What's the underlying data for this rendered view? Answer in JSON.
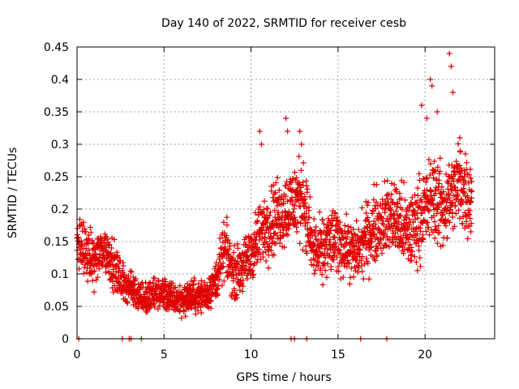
{
  "chart_data": {
    "type": "scatter",
    "title": "Day 140 of 2022, SRMTID for receiver cesb",
    "xlabel": "GPS time / hours",
    "ylabel": "SRMTID / TECUs",
    "xlim": [
      0,
      24
    ],
    "ylim": [
      0,
      0.45
    ],
    "xticks": [
      0,
      5,
      10,
      15,
      20
    ],
    "xtick_labels": [
      "0",
      "5",
      "10",
      "15",
      "20"
    ],
    "yticks": [
      0,
      0.05,
      0.1,
      0.15,
      0.2,
      0.25,
      0.3,
      0.35,
      0.4,
      0.45
    ],
    "ytick_labels": [
      "0",
      "0.05",
      "0.1",
      "0.15",
      "0.2",
      "0.25",
      "0.3",
      "0.35",
      "0.4",
      "0.45"
    ],
    "grid": true,
    "marker": "+",
    "color": "#e00000",
    "series": [
      {
        "name": "SRMTID",
        "trend": {
          "x": [
            0.0,
            0.5,
            1.0,
            1.5,
            2.0,
            2.5,
            3.0,
            3.5,
            4.0,
            4.5,
            5.0,
            5.5,
            6.0,
            6.5,
            7.0,
            7.5,
            8.0,
            8.5,
            9.0,
            9.5,
            10.0,
            10.5,
            11.0,
            11.5,
            12.0,
            12.5,
            13.0,
            13.5,
            14.0,
            14.5,
            15.0,
            15.5,
            16.0,
            16.5,
            17.0,
            17.5,
            18.0,
            18.5,
            19.0,
            19.5,
            20.0,
            20.5,
            21.0,
            21.5,
            22.0,
            22.5
          ],
          "y": [
            0.15,
            0.13,
            0.12,
            0.14,
            0.12,
            0.09,
            0.08,
            0.07,
            0.06,
            0.07,
            0.07,
            0.06,
            0.06,
            0.065,
            0.065,
            0.07,
            0.09,
            0.14,
            0.1,
            0.11,
            0.13,
            0.16,
            0.18,
            0.19,
            0.2,
            0.21,
            0.22,
            0.14,
            0.13,
            0.15,
            0.15,
            0.14,
            0.13,
            0.15,
            0.17,
            0.18,
            0.19,
            0.18,
            0.16,
            0.18,
            0.2,
            0.22,
            0.2,
            0.22,
            0.24,
            0.22
          ]
        },
        "spread": [
          0.035,
          0.03,
          0.03,
          0.03,
          0.03,
          0.025,
          0.02,
          0.02,
          0.02,
          0.02,
          0.02,
          0.02,
          0.02,
          0.02,
          0.02,
          0.02,
          0.025,
          0.035,
          0.03,
          0.03,
          0.035,
          0.04,
          0.045,
          0.045,
          0.045,
          0.05,
          0.05,
          0.04,
          0.04,
          0.04,
          0.04,
          0.035,
          0.035,
          0.04,
          0.045,
          0.045,
          0.045,
          0.05,
          0.05,
          0.05,
          0.05,
          0.055,
          0.05,
          0.05,
          0.055,
          0.05
        ],
        "points_per_hour": 100,
        "x_end": 22.7,
        "outliers": [
          {
            "x": 10.5,
            "y": 0.32
          },
          {
            "x": 10.6,
            "y": 0.3
          },
          {
            "x": 12.0,
            "y": 0.34
          },
          {
            "x": 12.1,
            "y": 0.32
          },
          {
            "x": 12.8,
            "y": 0.32
          },
          {
            "x": 12.9,
            "y": 0.3
          },
          {
            "x": 19.8,
            "y": 0.36
          },
          {
            "x": 20.1,
            "y": 0.34
          },
          {
            "x": 20.3,
            "y": 0.4
          },
          {
            "x": 20.4,
            "y": 0.39
          },
          {
            "x": 20.7,
            "y": 0.35
          },
          {
            "x": 21.4,
            "y": 0.44
          },
          {
            "x": 21.5,
            "y": 0.42
          },
          {
            "x": 21.6,
            "y": 0.38
          },
          {
            "x": 22.0,
            "y": 0.31
          }
        ],
        "zeros": [
          0.1,
          2.6,
          3.0,
          3.1,
          3.7,
          12.3,
          12.5,
          13.2,
          16.3,
          17.8
        ]
      }
    ]
  }
}
